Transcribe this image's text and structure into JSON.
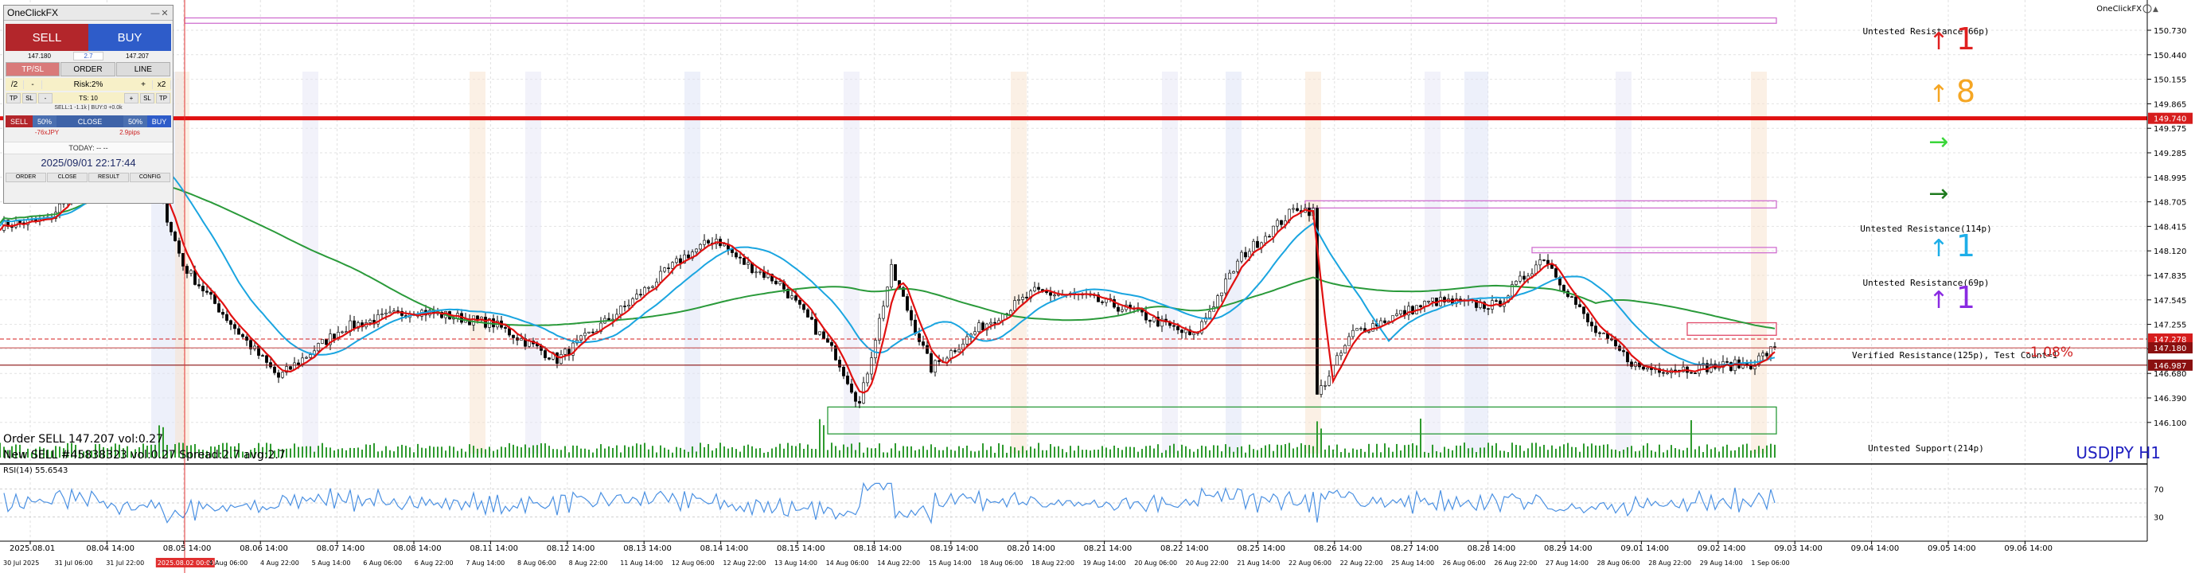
{
  "window": {
    "indicator_label": "OneClickFX",
    "symbol_label": "USDJPY H1",
    "rsi_label": "RSI(14) 55.6543",
    "order_line_1": "Order SELL 147.207 vol:0.27",
    "order_line_2": "New SELL #45838323 vol:0.27 Spread:2.7 avg:2.7"
  },
  "panel": {
    "title": "OneClickFX",
    "sell_label": "SELL",
    "buy_label": "BUY",
    "sell_price": "147.180",
    "spread": "2.7",
    "buy_price": "147.207",
    "tabs": [
      "TP/SL",
      "ORDER",
      "LINE"
    ],
    "half": "/2",
    "minus": "-",
    "risk": "Risk:2%",
    "plus": "+",
    "double": "x2",
    "tp": "TP",
    "sl": "SL",
    "ts": "TS: 10",
    "positions": "SELL:1 -1.1k | BUY:0 +0.0k",
    "close_sell": "SELL",
    "close_sell_50": "50%",
    "close_all": "CLOSE",
    "close_buy_50": "50%",
    "close_buy": "BUY",
    "pnl_jpy": "-76xJPY",
    "pnl_pips": "2.9pips",
    "today": "TODAY: -- --",
    "datetime": "2025/09/01   22:17:44",
    "footer": [
      "ORDER",
      "CLOSE",
      "RESULT",
      "CONFIG"
    ]
  },
  "levels": [
    {
      "label": "Untested Resistance(66p)"
    },
    {
      "label": "Untested Resistance(114p)"
    },
    {
      "label": "Untested Resistance(69p)"
    },
    {
      "label": "Verified Resistance(125p), Test Count=1"
    },
    {
      "label": "Untested Support(214p)"
    }
  ],
  "change_pct": "-1.08%",
  "strength": [
    {
      "arrow": "↑",
      "value": "1",
      "color": "#e02020"
    },
    {
      "arrow": "↑",
      "value": "8",
      "color": "#f5a623"
    },
    {
      "arrow": "→",
      "value": "",
      "color": "#39d639"
    },
    {
      "arrow": "→",
      "value": "",
      "color": "#1e7a1e"
    },
    {
      "arrow": "↑",
      "value": "1",
      "color": "#1eaee8"
    },
    {
      "arrow": "↑",
      "value": "1",
      "color": "#8a2be2"
    }
  ],
  "price_axis": [
    "150.730",
    "150.440",
    "150.155",
    "149.865",
    "149.575",
    "149.285",
    "148.995",
    "148.705",
    "148.415",
    "148.120",
    "147.835",
    "147.545",
    "147.255",
    "146.965",
    "146.680",
    "146.390",
    "146.100"
  ],
  "price_tags": [
    {
      "value": "149.740",
      "color": "#d61d1d"
    },
    {
      "value": "147.278",
      "color": "#d61d1d"
    },
    {
      "value": "147.180",
      "color": "#8a1010"
    },
    {
      "value": "146.987",
      "color": "#8a1010"
    }
  ],
  "rsi_axis": [
    "70",
    "30"
  ],
  "date_axis": [
    "2025.08.01",
    "08.04 14:00",
    "08.05 14:00",
    "08.06 14:00",
    "08.07 14:00",
    "08.08 14:00",
    "08.11 14:00",
    "08.12 14:00",
    "08.13 14:00",
    "08.14 14:00",
    "08.15 14:00",
    "08.18 14:00",
    "08.19 14:00",
    "08.20 14:00",
    "08.21 14:00",
    "08.22 14:00",
    "08.25 14:00",
    "08.26 14:00",
    "08.27 14:00",
    "08.28 14:00",
    "08.29 14:00",
    "09.01 14:00",
    "09.02 14:00",
    "09.03 14:00",
    "09.04 14:00",
    "09.05 14:00",
    "09.06 14:00"
  ],
  "time_axis": [
    "30 Jul 2025",
    "31 Jul 06:00",
    "31 Jul 22:00",
    "2025.08.02 00:00",
    "4 Aug 06:00",
    "4 Aug 22:00",
    "5 Aug 14:00",
    "6 Aug 06:00",
    "6 Aug 22:00",
    "7 Aug 14:00",
    "8 Aug 06:00",
    "8 Aug 22:00",
    "11 Aug 14:00",
    "12 Aug 06:00",
    "12 Aug 22:00",
    "13 Aug 14:00",
    "14 Aug 06:00",
    "14 Aug 22:00",
    "15 Aug 14:00",
    "18 Aug 06:00",
    "18 Aug 22:00",
    "19 Aug 14:00",
    "20 Aug 06:00",
    "20 Aug 22:00",
    "21 Aug 14:00",
    "22 Aug 06:00",
    "22 Aug 22:00",
    "25 Aug 14:00",
    "26 Aug 06:00",
    "26 Aug 22:00",
    "27 Aug 14:00",
    "28 Aug 06:00",
    "28 Aug 22:00",
    "29 Aug 14:00",
    "1 Sep 06:00"
  ],
  "colors": {
    "candle": "#000000",
    "ma_fast": "#e01010",
    "ma_mid": "#1aa5e0",
    "ma_slow": "#2a9a3a",
    "volume": "#2e9a2e",
    "rsi": "#4a90e2",
    "zone_resistance": "#d070d0",
    "zone_support": "#2a9a3a",
    "crosshair": "#e03030"
  }
}
